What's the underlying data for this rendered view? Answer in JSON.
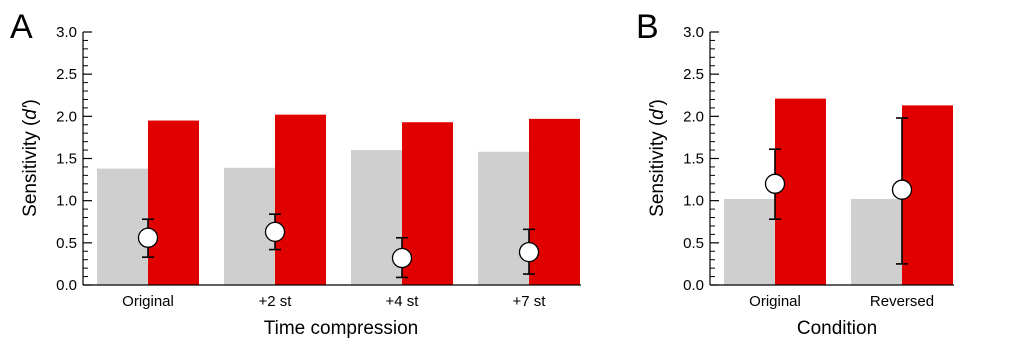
{
  "colors": {
    "gray_bar": "#cfcfcf",
    "red_bar": "#e00000",
    "marker_fill": "#ffffff",
    "axis": "#000000"
  },
  "chart_data": [
    {
      "panel": "A",
      "type": "bar",
      "xlabel": "Time compression",
      "ylabel_prefix": "Sensitivity (",
      "ylabel_italic": "d'",
      "ylabel_suffix": ")",
      "ylim": [
        0,
        3
      ],
      "yticks": [
        "0.0",
        "0.5",
        "1.0",
        "1.5",
        "2.0",
        "2.5",
        "3.0"
      ],
      "grid": false,
      "categories": [
        "Original",
        "+2 st",
        "+4 st",
        "+7 st"
      ],
      "series": [
        {
          "values": [
            1.38,
            1.39,
            1.6,
            1.58
          ],
          "color": "#cfcfcf"
        },
        {
          "values": [
            1.95,
            2.02,
            1.93,
            1.97
          ],
          "color": "#e00000"
        }
      ],
      "points": [
        {
          "value": 0.56,
          "low": 0.33,
          "high": 0.78
        },
        {
          "value": 0.63,
          "low": 0.42,
          "high": 0.84
        },
        {
          "value": 0.32,
          "low": 0.09,
          "high": 0.56
        },
        {
          "value": 0.39,
          "low": 0.13,
          "high": 0.66
        }
      ]
    },
    {
      "panel": "B",
      "type": "bar",
      "xlabel": "Condition",
      "ylabel_prefix": "Sensitivity (",
      "ylabel_italic": "d'",
      "ylabel_suffix": ")",
      "ylim": [
        0,
        3
      ],
      "yticks": [
        "0.0",
        "0.5",
        "1.0",
        "1.5",
        "2.0",
        "2.5",
        "3.0"
      ],
      "grid": false,
      "categories": [
        "Original",
        "Reversed"
      ],
      "series": [
        {
          "values": [
            1.02,
            1.02
          ],
          "color": "#cfcfcf"
        },
        {
          "values": [
            2.21,
            2.13
          ],
          "color": "#e00000"
        }
      ],
      "points": [
        {
          "value": 1.2,
          "low": 0.78,
          "high": 1.61
        },
        {
          "value": 1.13,
          "low": 0.25,
          "high": 1.98
        }
      ]
    }
  ]
}
